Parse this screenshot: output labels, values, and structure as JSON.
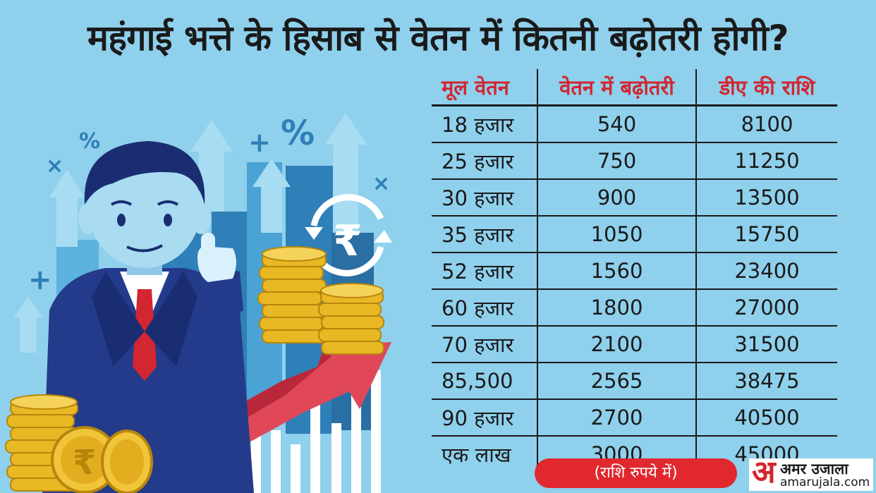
{
  "title": "महंगाई भत्ते के हिसाब से वेतन में कितनी बढ़ोतरी होगी?",
  "table": {
    "headers": [
      "मूल वेतन",
      "वेतन में बढ़ोतरी",
      "डीए की राशि"
    ],
    "rows": [
      [
        "18 हजार",
        "540",
        "8100"
      ],
      [
        "25 हजार",
        "750",
        "11250"
      ],
      [
        "30 हजार",
        "900",
        "13500"
      ],
      [
        "35 हजार",
        "1050",
        "15750"
      ],
      [
        "52 हजार",
        "1560",
        "23400"
      ],
      [
        "60 हजार",
        "1800",
        "27000"
      ],
      [
        "70 हजार",
        "2100",
        "31500"
      ],
      [
        "85,500",
        "2565",
        "38475"
      ],
      [
        "90 हजार",
        "2700",
        "40500"
      ],
      [
        "एक लाख",
        "3000",
        "45000"
      ]
    ]
  },
  "note": "(राशि रुपये में)",
  "logo": {
    "mark": "अ",
    "name": "अमर उजाला",
    "url": "amarujala.com"
  },
  "illustration": {
    "symbols": [
      "%",
      "%",
      "+",
      "+",
      "×",
      "×",
      "₹",
      "₹"
    ]
  },
  "colors": {
    "background": "#8fd0ec",
    "header_red": "#d22630",
    "accent_red": "#e0282e",
    "text": "#1a1a1a"
  }
}
